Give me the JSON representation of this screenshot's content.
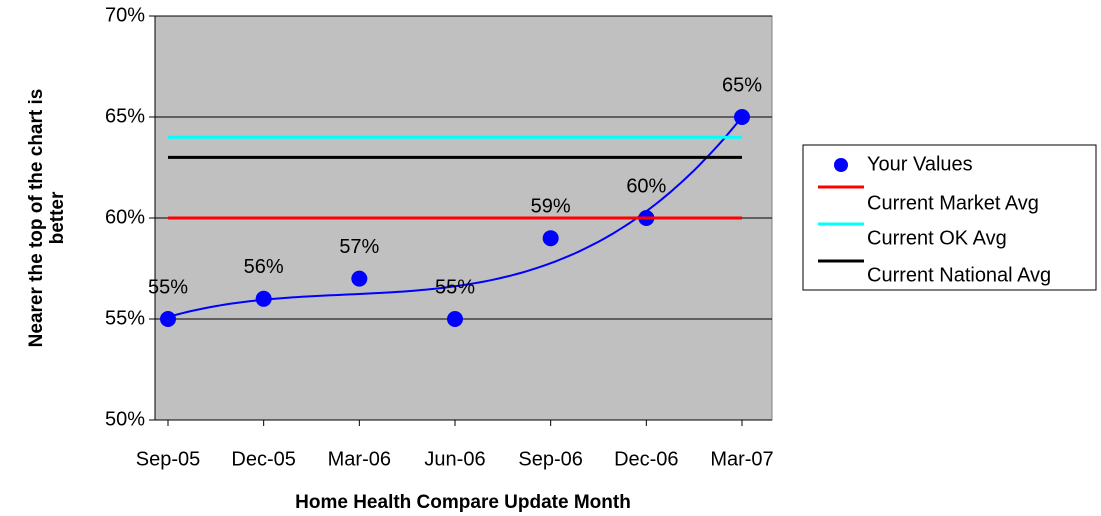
{
  "chart_data": {
    "type": "line",
    "categories": [
      "Sep-05",
      "Dec-05",
      "Mar-06",
      "Jun-06",
      "Sep-06",
      "Dec-06",
      "Mar-07"
    ],
    "series": [
      {
        "name": "Your Values",
        "color": "#0000ff",
        "marker": "circle",
        "line": false,
        "values": [
          55,
          56,
          57,
          55,
          59,
          60,
          65
        ],
        "value_labels": [
          "55%",
          "56%",
          "57%",
          "55%",
          "59%",
          "60%",
          "65%"
        ],
        "trendline": {
          "type": "polynomial",
          "order": 3
        }
      },
      {
        "name": "Current Market Avg",
        "color": "#ff0000",
        "values": [
          60,
          60,
          60,
          60,
          60,
          60,
          60
        ]
      },
      {
        "name": "Current OK Avg",
        "color": "#00ffff",
        "values": [
          64,
          64,
          64,
          64,
          64,
          64,
          64
        ]
      },
      {
        "name": "Current National Avg",
        "color": "#000000",
        "values": [
          63,
          63,
          63,
          63,
          63,
          63,
          63
        ]
      }
    ],
    "ylim": [
      50,
      70
    ],
    "yticks": [
      {
        "value": 50,
        "label": "50%"
      },
      {
        "value": 55,
        "label": "55%"
      },
      {
        "value": 60,
        "label": "60%"
      },
      {
        "value": 65,
        "label": "65%"
      },
      {
        "value": 70,
        "label": "70%"
      }
    ],
    "grid": true,
    "y_label": [
      "Nearer the top of the chart is",
      "better"
    ],
    "x_label": "Home Health Compare Update Month",
    "legend": "right",
    "plot_background": "#c0c0c0"
  }
}
